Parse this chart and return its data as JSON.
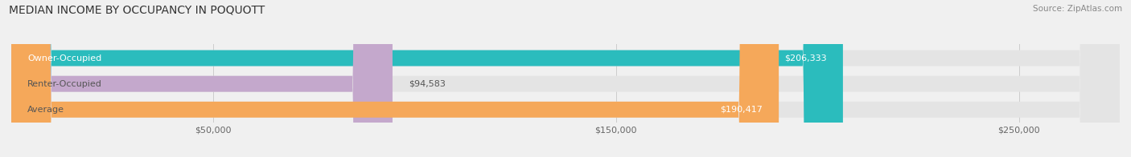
{
  "title": "MEDIAN INCOME BY OCCUPANCY IN POQUOTT",
  "source": "Source: ZipAtlas.com",
  "categories": [
    "Owner-Occupied",
    "Renter-Occupied",
    "Average"
  ],
  "values": [
    206333,
    94583,
    190417
  ],
  "bar_colors": [
    "#2bbcbd",
    "#c4a8cc",
    "#f5a85a"
  ],
  "value_labels": [
    "$206,333",
    "$94,583",
    "$190,417"
  ],
  "xlim": [
    0,
    275000
  ],
  "xticks": [
    50000,
    150000,
    250000
  ],
  "xticklabels": [
    "$50,000",
    "$150,000",
    "$250,000"
  ],
  "background_color": "#f0f0f0",
  "bar_background_color": "#e4e4e4",
  "title_fontsize": 10,
  "source_fontsize": 7.5,
  "label_fontsize": 8,
  "tick_fontsize": 8
}
